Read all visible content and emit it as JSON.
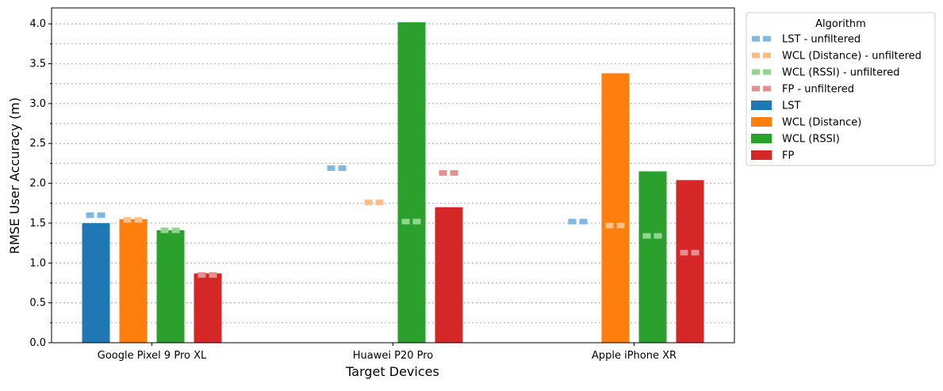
{
  "chart_data": {
    "type": "bar",
    "xlabel": "Target Devices",
    "ylabel": "RMSE User Accuracy (m)",
    "categories": [
      "Google Pixel 9 Pro XL",
      "Huawei P20 Pro",
      "Apple iPhone XR"
    ],
    "ylim": [
      0,
      4.2
    ],
    "yticks": [
      "0.0",
      "0.5",
      "1.0",
      "1.5",
      "2.0",
      "2.5",
      "3.0",
      "3.5",
      "4.0"
    ],
    "grid": "horizontal dotted (major and minor)",
    "legend": {
      "title": "Algorithm",
      "placement": "outside right, top",
      "entries": [
        {
          "label": "LST - unfiltered",
          "color": "#7fb8e0",
          "style": "dash"
        },
        {
          "label": "WCL (Distance) - unfiltered",
          "color": "#ffbe86",
          "style": "dash"
        },
        {
          "label": "WCL (RSSI) - unfiltered",
          "color": "#8fd68f",
          "style": "dash"
        },
        {
          "label": "FP - unfiltered",
          "color": "#e68f8f",
          "style": "dash"
        },
        {
          "label": "LST",
          "color": "#1f77b4",
          "style": "bar"
        },
        {
          "label": "WCL (Distance)",
          "color": "#ff7f0e",
          "style": "bar"
        },
        {
          "label": "WCL (RSSI)",
          "color": "#2ca02c",
          "style": "bar"
        },
        {
          "label": "FP",
          "color": "#d62728",
          "style": "bar"
        }
      ]
    },
    "series": [
      {
        "name": "LST",
        "color": "#1f77b4",
        "values": [
          1.5,
          null,
          null
        ]
      },
      {
        "name": "WCL (Distance)",
        "color": "#ff7f0e",
        "values": [
          1.55,
          null,
          3.38
        ]
      },
      {
        "name": "WCL (RSSI)",
        "color": "#2ca02c",
        "values": [
          1.41,
          4.02,
          2.15
        ]
      },
      {
        "name": "FP",
        "color": "#d62728",
        "values": [
          0.87,
          1.7,
          2.04
        ]
      }
    ],
    "unfiltered_series": [
      {
        "name": "LST - unfiltered",
        "color": "#7fb8e0",
        "values": [
          1.6,
          2.19,
          1.52
        ]
      },
      {
        "name": "WCL (Distance) - unfiltered",
        "color": "#ffbe86",
        "values": [
          1.54,
          1.76,
          1.47
        ]
      },
      {
        "name": "WCL (RSSI) - unfiltered",
        "color": "#8fd68f",
        "values": [
          1.41,
          1.52,
          1.34
        ]
      },
      {
        "name": "FP - unfiltered",
        "color": "#e68f8f",
        "values": [
          0.85,
          2.13,
          1.13
        ]
      }
    ]
  }
}
